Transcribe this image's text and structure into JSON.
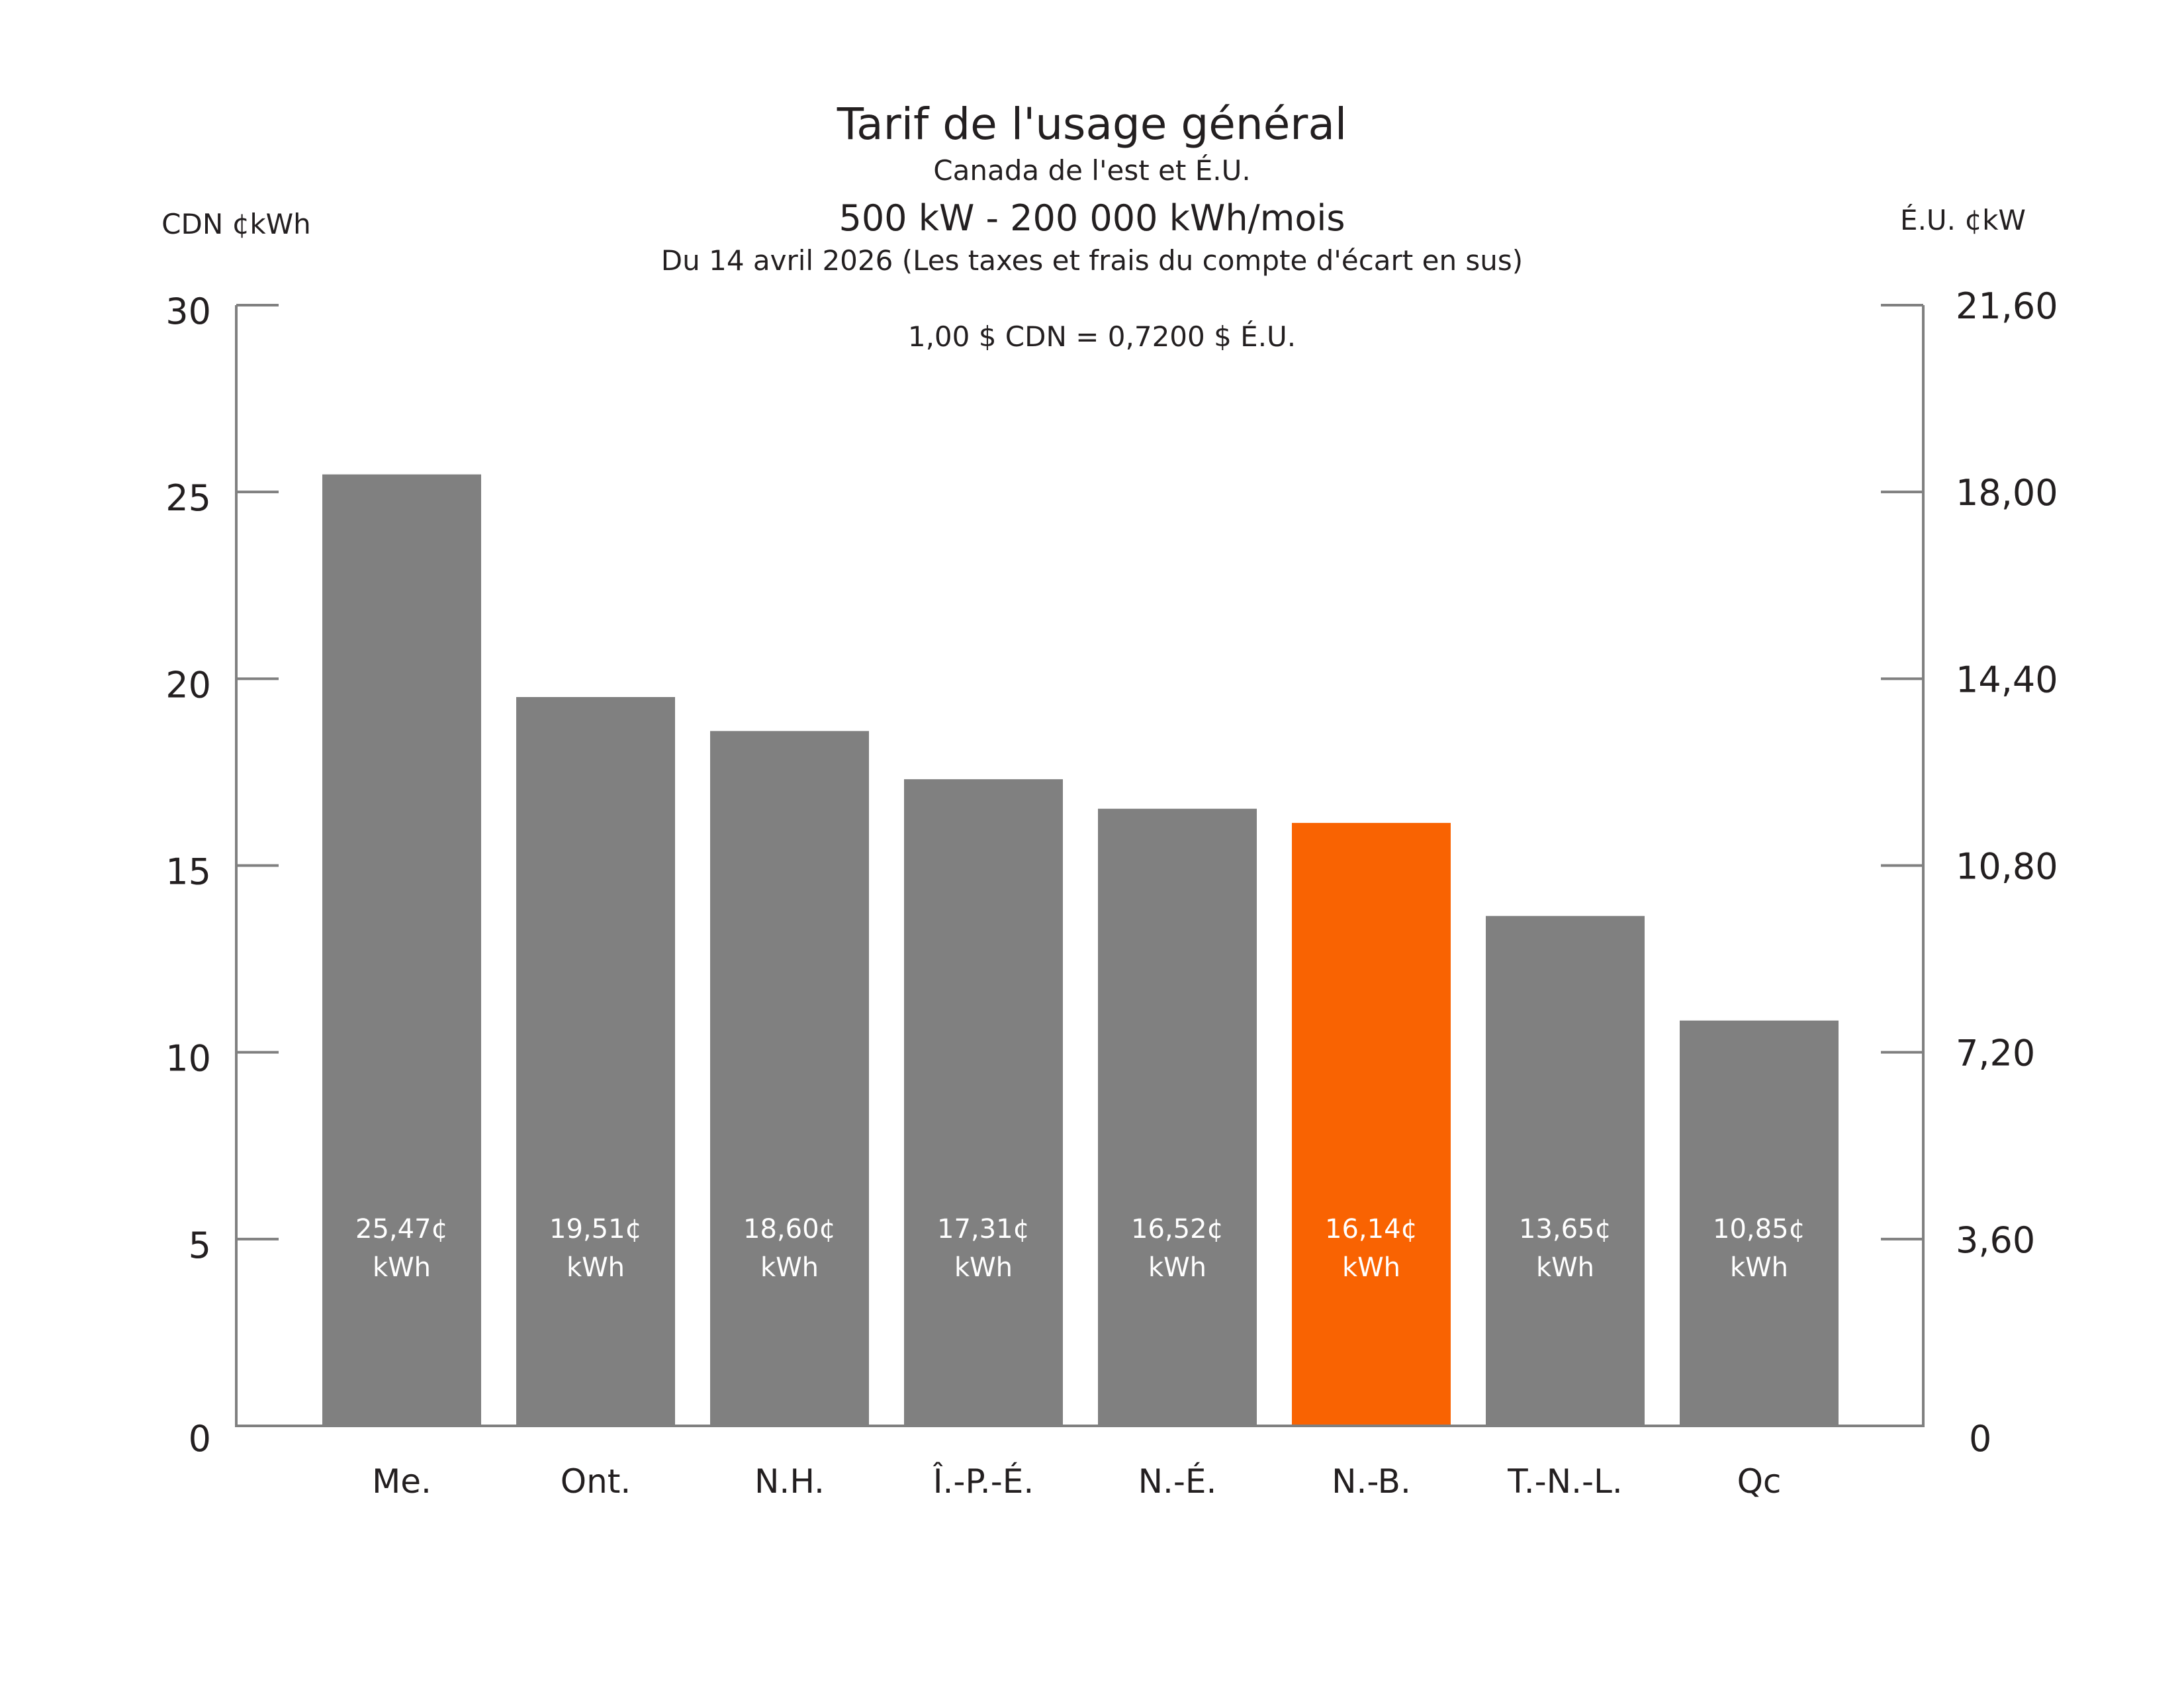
{
  "chart_data": {
    "type": "bar",
    "title": "Tarif de l'usage général",
    "subtitle": "Canada de l'est et É.U.",
    "subtitle2": "500 kW - 200 000 kWh/mois",
    "subtitle3": "Du 14 avril 2026 (Les taxes et frais du compte d'écart en sus)",
    "annotation": "1,00 $ CDN = 0,7200 $ É.U.",
    "ylabel": "CDN ¢kWh",
    "ylabel_right": "É.U. ¢kW",
    "ylim": [
      0,
      30
    ],
    "ylim_right": [
      0,
      21.6
    ],
    "yticks": [
      "0",
      "5",
      "10",
      "15",
      "20",
      "25",
      "30"
    ],
    "yticks_right": [
      "0",
      "3,60",
      "7,20",
      "10,80",
      "14,40",
      "18,00",
      "21,60"
    ],
    "grid": false,
    "categories": [
      "Me.",
      "Ont.",
      "N.H.",
      "Î.-P.-É.",
      "N.-É.",
      "N.-B.",
      "T.-N.-L.",
      "Qc"
    ],
    "values": [
      25.47,
      19.51,
      18.6,
      17.31,
      16.52,
      16.14,
      13.65,
      10.85
    ],
    "data_labels": [
      "25,47¢",
      "19,51¢",
      "18,60¢",
      "17,31¢",
      "16,52¢",
      "16,14¢",
      "13,65¢",
      "10,85¢"
    ],
    "data_label_unit": "kWh",
    "highlight_category": "N.-B.",
    "colors": {
      "bar": "#808080",
      "highlight": "#f96302",
      "axis": "#808080",
      "text": "#231f20"
    }
  }
}
